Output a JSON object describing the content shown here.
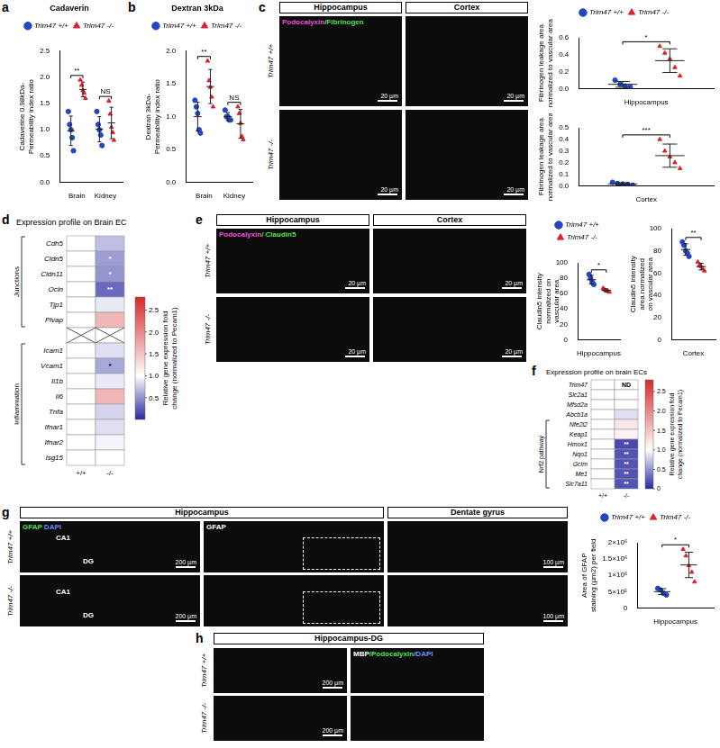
{
  "chart_data": [
    {
      "panel": "a",
      "type": "scatter",
      "title": "Cadaverin",
      "y_label": [
        "Cadaverine 0.98kDa-",
        "Permeability index ratio"
      ],
      "categories": [
        "Brain",
        "Kidney"
      ],
      "ylim": [
        0,
        2.5
      ],
      "yticks": [
        {
          "value": 0,
          "label": "0.0"
        },
        0.5,
        {
          "value": 1,
          "label": "1.0"
        },
        1.5,
        {
          "value": 2,
          "label": "2.0"
        },
        2.5
      ],
      "grid": false,
      "legend": "top",
      "annotations": [
        "**",
        "NS"
      ],
      "series": [
        {
          "name": "Trim47 +/+",
          "color": "#2346c4",
          "marker": "circle",
          "values": [
            [
              1.35,
              1.1,
              1.0,
              0.85,
              0.6
            ],
            [
              1.35,
              1.1,
              1.0,
              0.9,
              0.7
            ]
          ],
          "mean": [
            0.98,
            1.01
          ],
          "error": [
            0.28,
            0.24
          ]
        },
        {
          "name": "Trim47 -/-",
          "color": "#e0202a",
          "marker": "triangle",
          "values": [
            [
              1.95,
              1.85,
              1.75,
              1.7,
              1.6
            ],
            [
              1.55,
              1.3,
              1.05,
              0.95,
              0.8
            ]
          ],
          "mean": [
            1.77,
            1.13
          ],
          "error": [
            0.14,
            0.3
          ]
        }
      ]
    },
    {
      "panel": "b",
      "type": "scatter",
      "title": "Dextran 3kDa",
      "y_label": [
        "Dextran 3kDa-",
        "Permeability index ratio"
      ],
      "categories": [
        "Brain",
        "Kidney"
      ],
      "ylim": [
        0,
        2.0
      ],
      "yticks": [
        {
          "value": 0,
          "label": "0.0"
        },
        0.5,
        {
          "value": 1,
          "label": "1.0"
        },
        1.5,
        {
          "value": 2,
          "label": "2.0"
        }
      ],
      "grid": false,
      "legend": "top",
      "annotations": [
        "**",
        "NS"
      ],
      "series": [
        {
          "name": "Trim47 +/+",
          "color": "#2346c4",
          "marker": "circle",
          "values": [
            [
              1.25,
              1.15,
              1.05,
              0.8,
              0.75
            ],
            [
              1.1,
              1.0,
              1.0,
              0.95,
              0.95
            ]
          ],
          "mean": [
            1.0,
            1.0
          ],
          "error": [
            0.22,
            0.06
          ]
        },
        {
          "name": "Trim47 -/-",
          "color": "#e0202a",
          "marker": "triangle",
          "values": [
            [
              1.85,
              1.55,
              1.45,
              1.3,
              1.15
            ],
            [
              1.15,
              1.05,
              0.9,
              0.7,
              0.65
            ]
          ],
          "mean": [
            1.46,
            0.89
          ],
          "error": [
            0.26,
            0.22
          ]
        }
      ]
    },
    {
      "panel": "c",
      "type": "scatter",
      "y_label": [
        "Fibrinogen leakage area",
        "normalized to vascular area"
      ],
      "categories": [
        "Hippocampus"
      ],
      "ylim": [
        0,
        0.6
      ],
      "yticks": [
        {
          "value": 0,
          "label": "0.0"
        },
        0.2,
        0.4,
        0.6
      ],
      "grid": false,
      "legend": "top",
      "annotations": [
        "*"
      ],
      "series": [
        {
          "name": "Trim47 +/+",
          "color": "#2346c4",
          "marker": "circle",
          "values": [
            [
              0.1,
              0.05,
              0.03,
              0.02
            ]
          ],
          "mean": [
            0.05
          ],
          "error": [
            0.035
          ]
        },
        {
          "name": "Trim47 -/-",
          "color": "#e0202a",
          "marker": "triangle",
          "values": [
            [
              0.5,
              0.42,
              0.35,
              0.25,
              0.15
            ]
          ],
          "mean": [
            0.33
          ],
          "error": [
            0.14
          ]
        }
      ]
    },
    {
      "panel": "c",
      "type": "scatter",
      "y_label": [
        "Fibrinogen leakage area",
        "normalized to vascular area"
      ],
      "categories": [
        "Cortex"
      ],
      "ylim": [
        0,
        0.5
      ],
      "yticks": [
        {
          "value": 0,
          "label": "0.0"
        },
        0.1,
        0.2,
        0.3,
        0.4,
        0.5
      ],
      "grid": false,
      "annotations": [
        "***"
      ],
      "series": [
        {
          "name": "Trim47 +/+",
          "color": "#2346c4",
          "marker": "circle",
          "values": [
            [
              0.03,
              0.02,
              0.015,
              0.01,
              0.005
            ]
          ],
          "mean": [
            0.016
          ],
          "error": [
            0.01
          ]
        },
        {
          "name": "Trim47 -/-",
          "color": "#e0202a",
          "marker": "triangle",
          "values": [
            [
              0.4,
              0.3,
              0.25,
              0.2,
              0.15
            ]
          ],
          "mean": [
            0.26
          ],
          "error": [
            0.1
          ]
        }
      ]
    },
    {
      "panel": "e",
      "type": "scatter",
      "y_label": [
        "Claudin5 intensity",
        "normalized on",
        "vascular area"
      ],
      "categories": [
        "Hippocampus"
      ],
      "ylim": [
        0,
        100
      ],
      "yticks": [
        0,
        20,
        40,
        60,
        80,
        100
      ],
      "grid": false,
      "legend": "top",
      "annotations": [
        "*"
      ],
      "series": [
        {
          "name": "Trim47 +/+",
          "color": "#2346c4",
          "marker": "circle",
          "values": [
            [
              85,
              80,
              75,
              72
            ]
          ],
          "mean": [
            78
          ],
          "error": [
            5.7
          ]
        },
        {
          "name": "Trim47 -/-",
          "color": "#e0202a",
          "marker": "triangle",
          "values": [
            [
              67,
              65,
              64,
              63,
              62
            ]
          ],
          "mean": [
            64.2
          ],
          "error": [
            1.9
          ]
        }
      ]
    },
    {
      "panel": "e",
      "type": "scatter",
      "y_label": [
        "Claudin5 intensity",
        "area normalized",
        "on vascular area"
      ],
      "categories": [
        "Cortex"
      ],
      "ylim": [
        0,
        100
      ],
      "yticks": [
        0,
        20,
        40,
        60,
        80,
        100
      ],
      "grid": false,
      "annotations": [
        "**"
      ],
      "series": [
        {
          "name": "Trim47 +/+",
          "color": "#2346c4",
          "marker": "circle",
          "values": [
            [
              88,
              85,
              80,
              78,
              75
            ]
          ],
          "mean": [
            81.2
          ],
          "error": [
            5.2
          ]
        },
        {
          "name": "Trim47 -/-",
          "color": "#e0202a",
          "marker": "triangle",
          "values": [
            [
              70,
              67,
              66,
              64,
              62
            ]
          ],
          "mean": [
            65.8
          ],
          "error": [
            3
          ]
        }
      ]
    },
    {
      "panel": "g",
      "type": "scatter",
      "y_label": [
        "Area of GFAP",
        "staining (µm2) per field"
      ],
      "categories": [
        "Hippocampus"
      ],
      "ylim": [
        0,
        2000000
      ],
      "yticks": [
        0,
        {
          "value": 500000,
          "label": "5×10⁵"
        },
        {
          "value": 1000000,
          "label": "1×10⁶"
        },
        {
          "value": 1500000,
          "label": "1.5×10⁶"
        },
        {
          "value": 2000000,
          "label": "2×10⁶"
        }
      ],
      "grid": false,
      "legend": "top",
      "annotations": [
        "*"
      ],
      "series": [
        {
          "name": "Trim47 +/+",
          "color": "#2346c4",
          "marker": "circle",
          "values": [
            [
              600000,
              550000,
              450000,
              400000
            ]
          ],
          "mean": [
            500000
          ],
          "error": [
            91000
          ]
        },
        {
          "name": "Trim47 -/-",
          "color": "#e0202a",
          "marker": "triangle",
          "values": [
            [
              1800000,
              1600000,
              1300000,
              1100000,
              800000
            ]
          ],
          "mean": [
            1320000
          ],
          "error": [
            390000
          ]
        }
      ]
    },
    {
      "panel": "d",
      "type": "heatmap",
      "title": "Expression profile on Brain EC",
      "columns": [
        "+/+",
        "-/-"
      ],
      "rows": [
        {
          "label": "Cdh5",
          "values": [
            1.0,
            0.7
          ]
        },
        {
          "label": "Cldn5",
          "values": [
            1.0,
            0.55
          ],
          "annotations": [
            null,
            "*"
          ]
        },
        {
          "label": "Cldn11",
          "values": [
            1.0,
            0.5
          ],
          "annotations": [
            null,
            "*"
          ]
        },
        {
          "label": "Ocln",
          "values": [
            1.0,
            0.3
          ],
          "annotations": [
            null,
            "**"
          ]
        },
        {
          "label": "Tjp1",
          "values": [
            1.0,
            0.9
          ]
        },
        {
          "label": "Plvap",
          "values": [
            1.0,
            1.6
          ]
        },
        {
          "label": null,
          "values": [
            null,
            null
          ]
        },
        {
          "label": "Icam1",
          "values": [
            1.0,
            0.85
          ]
        },
        {
          "label": "Vcam1",
          "values": [
            1.0,
            0.6
          ],
          "annotations": [
            null,
            "*"
          ]
        },
        {
          "label": "Il1b",
          "values": [
            1.0,
            0.9
          ]
        },
        {
          "label": "Il6",
          "values": [
            1.0,
            1.6
          ]
        },
        {
          "label": "Tnfa",
          "values": [
            1.0,
            0.8
          ]
        },
        {
          "label": "Ifnar1",
          "values": [
            1.0,
            0.85
          ]
        },
        {
          "label": "Ifnar2",
          "values": [
            1.0,
            0.95
          ]
        },
        {
          "label": "Isg15",
          "values": [
            1.0,
            1.0
          ]
        }
      ],
      "groups": [
        {
          "label": "Junctions",
          "first": "Cdh5",
          "last": "Plvap"
        },
        {
          "label": "Inflammation",
          "first": "Icam1",
          "last": "Isg15"
        }
      ],
      "colorbar_label": "Relative gene expression fold change (normalized to Pecam1)",
      "colorbar_range": [
        0,
        2.8
      ],
      "colorbar_ticks": [
        0.5,
        {
          "value": 1,
          "label": "1.0"
        },
        1.5,
        {
          "value": 2,
          "label": "2.0"
        },
        2.5
      ]
    },
    {
      "panel": "f",
      "type": "heatmap",
      "title": "Expression profile on brain ECs",
      "columns": [
        "+/+",
        "-/-"
      ],
      "rows": [
        {
          "label": "Trim47",
          "values": [
            1.0,
            null
          ],
          "annotations": [
            null,
            "ND"
          ]
        },
        {
          "label": "Slc2a1",
          "values": [
            1.0,
            1.0
          ]
        },
        {
          "label": "Mfsd2a",
          "values": [
            1.0,
            1.0
          ]
        },
        {
          "label": "Abcb1a",
          "values": [
            1.0,
            0.85
          ]
        },
        {
          "label": "Nfe2l2",
          "values": [
            1.0,
            1.2
          ]
        },
        {
          "label": "Keap1",
          "values": [
            1.0,
            1.1
          ]
        },
        {
          "label": "Hmox1",
          "values": [
            1.0,
            0.15
          ],
          "annotations": [
            null,
            "**"
          ]
        },
        {
          "label": "Nqo1",
          "values": [
            1.0,
            0.2
          ],
          "annotations": [
            null,
            "**"
          ]
        },
        {
          "label": "Gclm",
          "values": [
            1.0,
            0.2
          ],
          "annotations": [
            null,
            "**"
          ]
        },
        {
          "label": "Me1",
          "values": [
            1.0,
            0.2
          ],
          "annotations": [
            null,
            "**"
          ]
        },
        {
          "label": "Slc7a11",
          "values": [
            1.0,
            0.2
          ],
          "annotations": [
            null,
            "**"
          ]
        }
      ],
      "groups": [
        {
          "label": "Nrf2 pathway",
          "first": "Nfe2l2",
          "last": "Slc7a11"
        }
      ],
      "colorbar_label": "Relative gene expression fold change (normalized to Pecam1)",
      "colorbar_range": [
        0,
        2.8
      ],
      "colorbar_ticks": [
        0,
        0.5,
        {
          "value": 1,
          "label": "1.0"
        },
        1.5,
        {
          "value": 2,
          "label": "2.0"
        },
        2.5
      ]
    }
  ],
  "image_panels": [
    {
      "panel": "c",
      "column_titles": [
        "Hippocampus",
        "Cortex"
      ],
      "row_labels": [
        "Trim47 +/+",
        "Trim47 -/-"
      ],
      "stain": [
        {
          "text": "Podocalyxin",
          "color": "#ec4fd8"
        },
        {
          "text": "/Fibrinogen",
          "color": "#4fe04f"
        }
      ],
      "scale_bar": "20 µm"
    },
    {
      "panel": "e",
      "column_titles": [
        "Hippocampus",
        "Cortex"
      ],
      "row_labels": [
        "Trim47 +/+",
        "Trim47 -/-"
      ],
      "stain": [
        {
          "text": "Podocalyxin",
          "color": "#ec4fd8"
        },
        {
          "text": "/ Claudin5",
          "color": "#4fe04f"
        }
      ],
      "scale_bar": "20 µm"
    },
    {
      "panel": "g",
      "column_titles": [
        "Hippocampus",
        "Dentate gyrus"
      ],
      "row_labels": [
        "Trim47 +/+",
        "Trim47 -/-"
      ],
      "tiles": [
        {
          "stain": [
            {
              "text": "GFAP",
              "color": "#4fe04f"
            },
            {
              "text": " DAPI",
              "color": "#6f8cff"
            }
          ],
          "labels": [
            "CA1",
            "DG"
          ],
          "scale_bar": "200 µm"
        },
        {
          "stain": [
            {
              "text": "GFAP",
              "color": "#ffffff"
            }
          ]
        },
        {
          "scale_bar": "100 µm"
        }
      ]
    },
    {
      "panel": "h",
      "title": "Hippocampus-DG",
      "row_labels": [
        "Trim47 +/+",
        "Trim47 -/-"
      ],
      "stain": [
        {
          "text": "MBP",
          "color": "#ffffff"
        },
        {
          "text": "/Podocalyxin",
          "color": "#4fe04f"
        },
        {
          "text": "/DAPI",
          "color": "#6f8cff"
        }
      ],
      "scale_bar": "200 µm"
    }
  ]
}
